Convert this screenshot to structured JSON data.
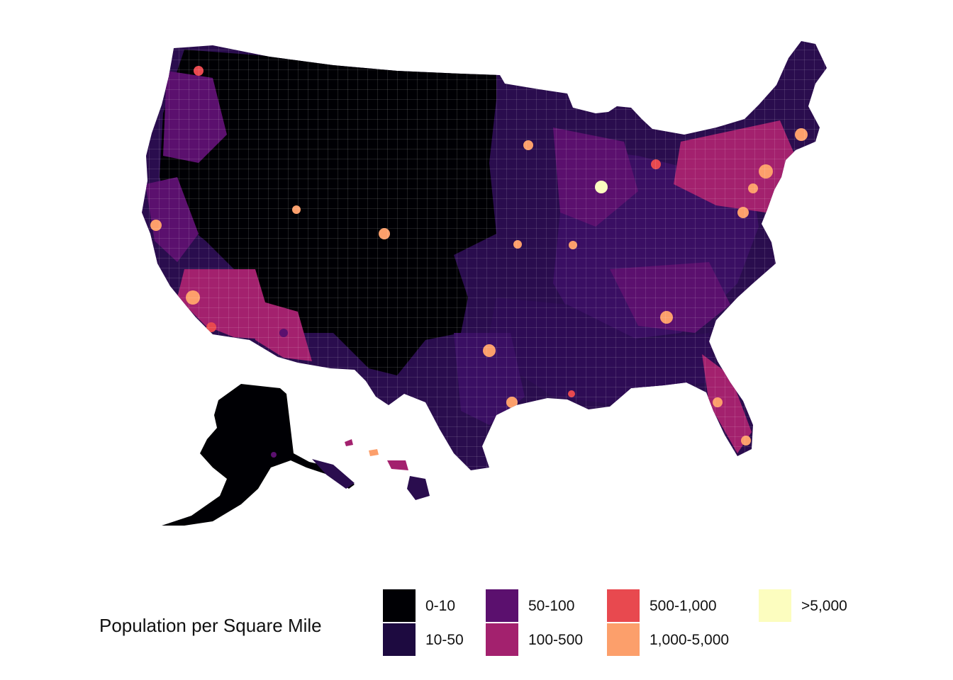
{
  "legend": {
    "title": "Population per Square Mile",
    "items": [
      {
        "label": "0-10",
        "color": "#000004"
      },
      {
        "label": "10-50",
        "color": "#1d0a40"
      },
      {
        "label": "50-100",
        "color": "#5b106e"
      },
      {
        "label": "100-500",
        "color": "#a3216e"
      },
      {
        "label": "500-1,000",
        "color": "#e8494f"
      },
      {
        "label": "1,000-5,000",
        "color": "#fc9f6b"
      },
      {
        "label": ">5,000",
        "color": "#fcfdbf"
      }
    ]
  }
}
